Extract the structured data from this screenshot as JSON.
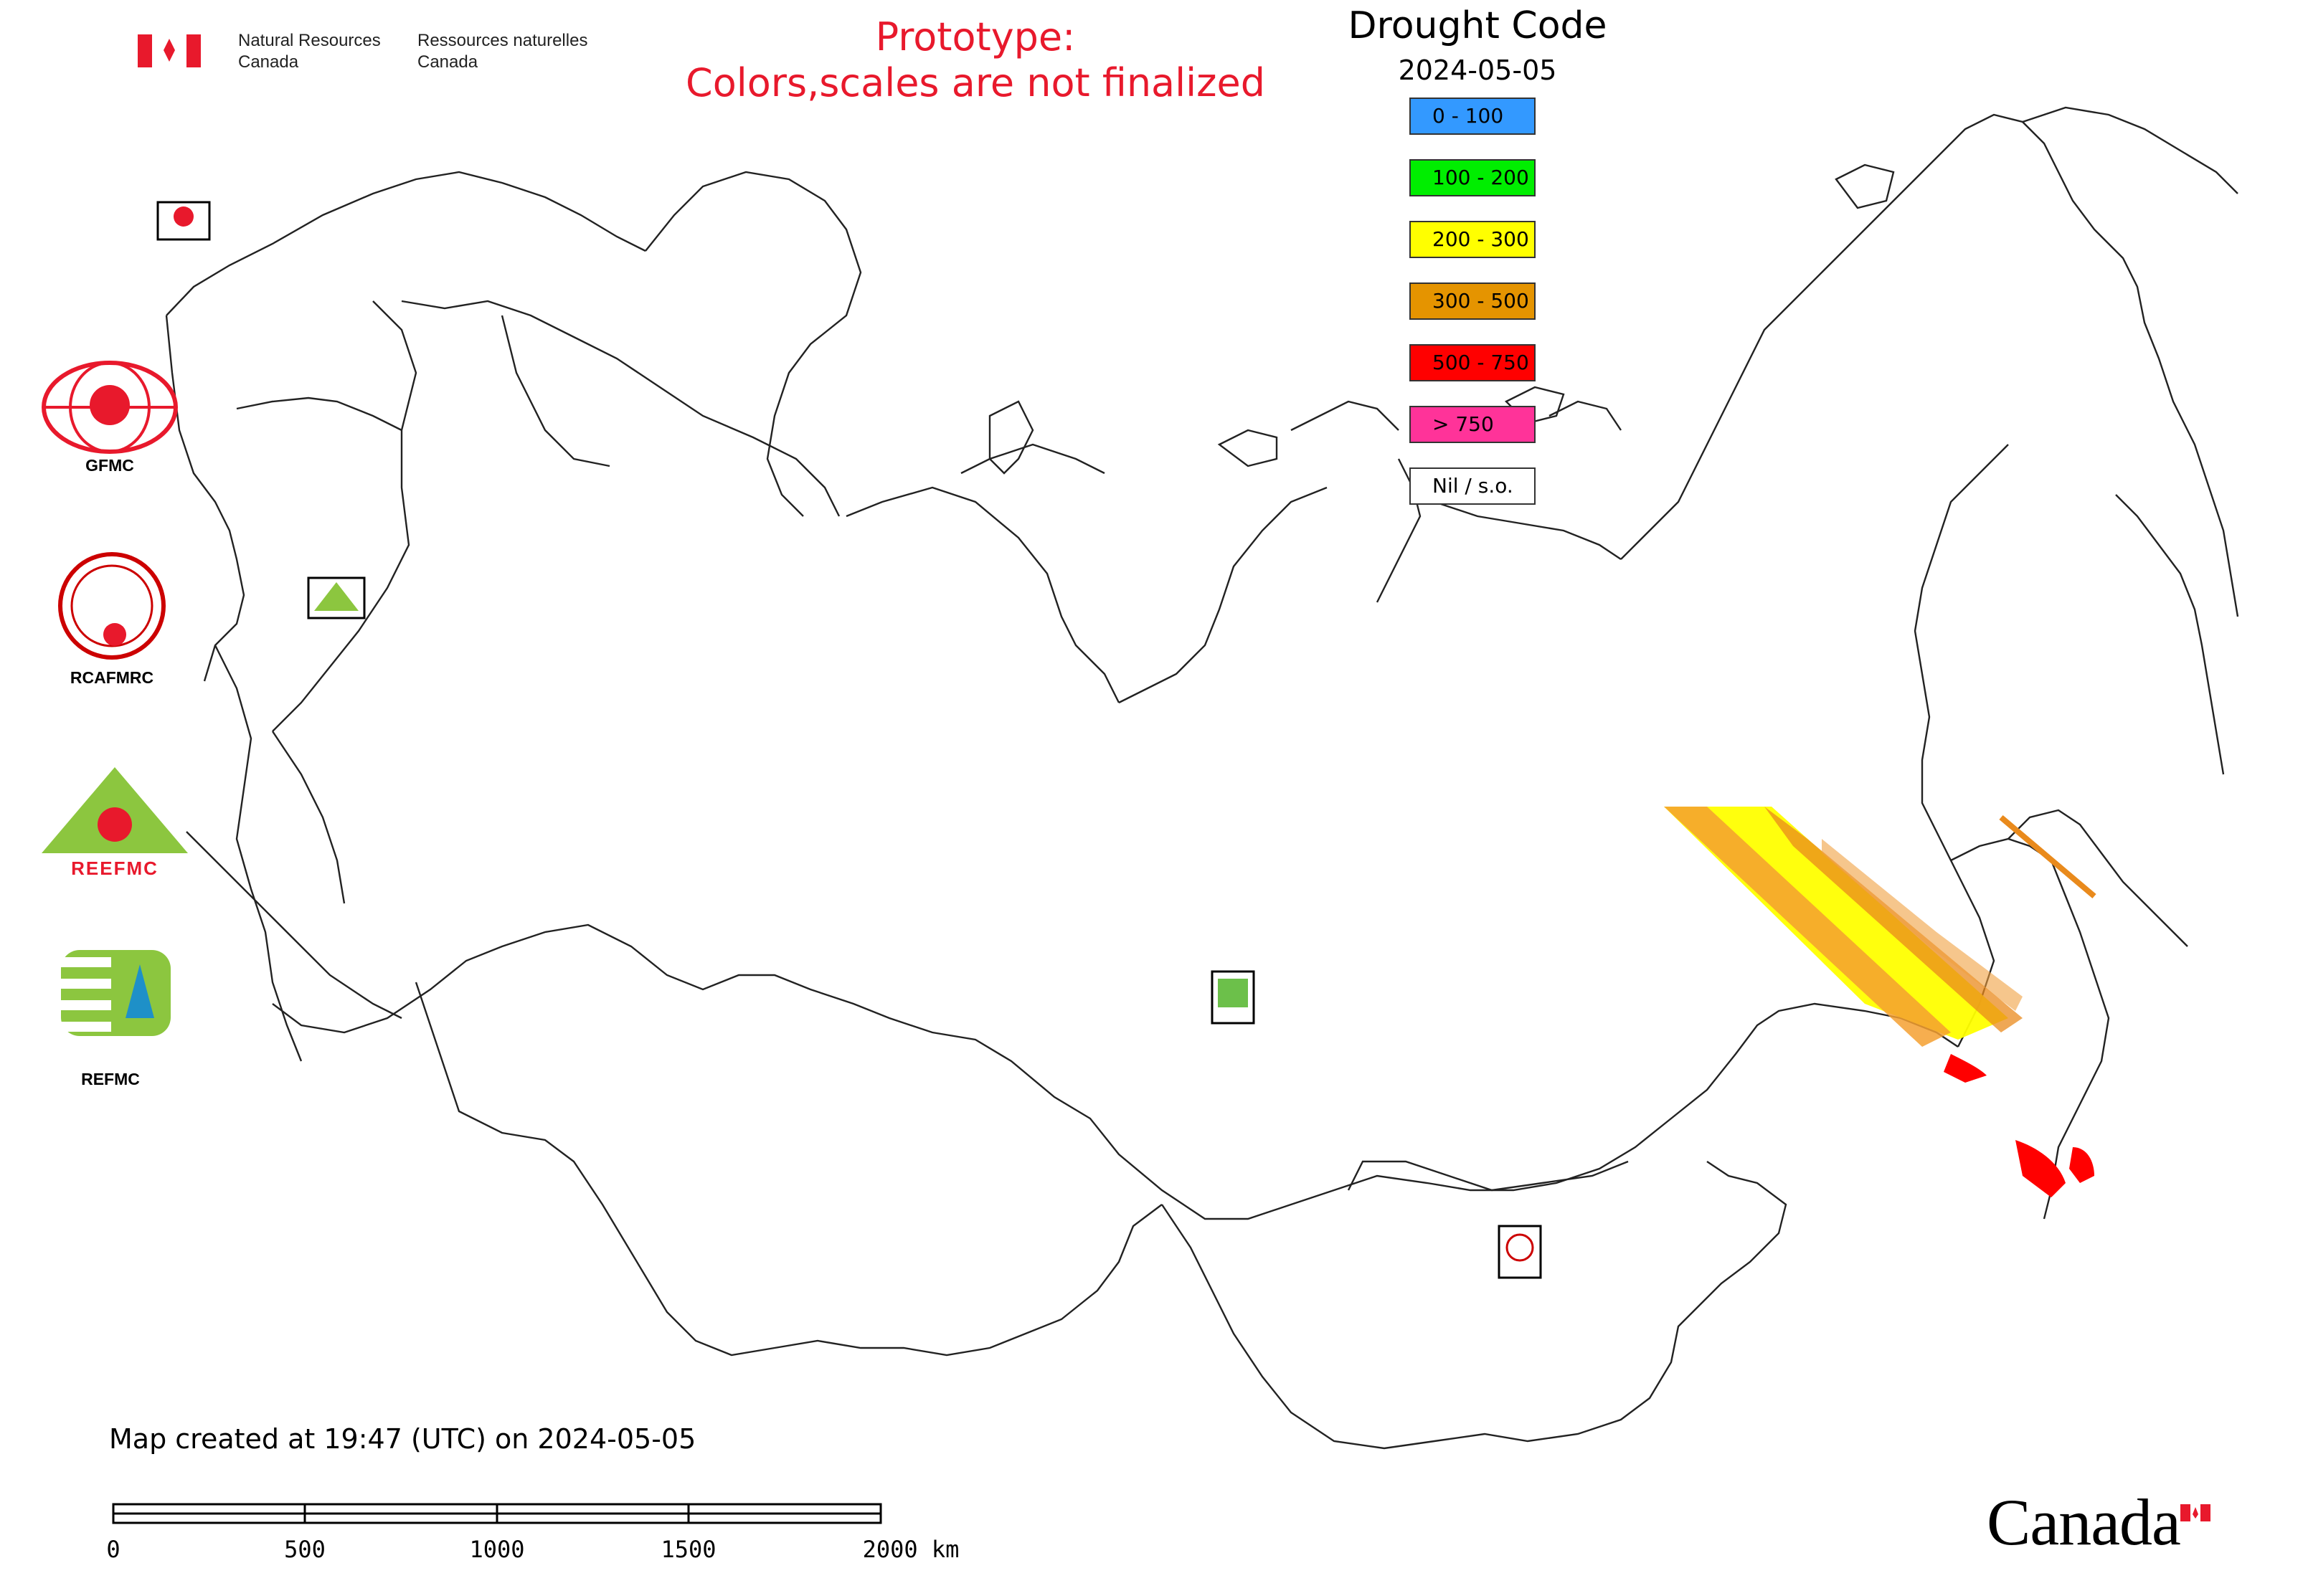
{
  "header": {
    "nrcan_en_line1": "Natural Resources",
    "nrcan_en_line2": "Canada",
    "nrcan_fr_line1": "Ressources naturelles",
    "nrcan_fr_line2": "Canada",
    "prototype_line1": "Prototype:",
    "prototype_line2": "Colors,scales are not finalized"
  },
  "legend": {
    "title": "Drought Code",
    "date": "2024-05-05",
    "items": [
      {
        "label": "0 - 100",
        "color": "#3399ff"
      },
      {
        "label": "100 - 200",
        "color": "#00ee00"
      },
      {
        "label": "200 - 300",
        "color": "#ffff00"
      },
      {
        "label": "300 - 500",
        "color": "#e59400"
      },
      {
        "label": "500 - 750",
        "color": "#ff0000"
      },
      {
        "label": "> 750",
        "color": "#ff3399"
      },
      {
        "label": "Nil / s.o.",
        "color": "#ffffff"
      }
    ]
  },
  "agencies": [
    {
      "label": "GFMC",
      "icon": "gfmc-logo-icon"
    },
    {
      "label": "RCAFMRC",
      "icon": "rcafmrc-logo-icon"
    },
    {
      "label": "REEFMC",
      "icon": "reefmc-logo-icon"
    },
    {
      "label": "REFMC",
      "icon": "refmc-logo-icon"
    }
  ],
  "map": {
    "background": "#ffffff",
    "border_color": "#000000"
  },
  "footer": {
    "timestamp": "Map created at 19:47 (UTC) on 2024-05-05",
    "scale_ticks": [
      "0",
      "500",
      "1000",
      "1500",
      "2000 km"
    ],
    "canada_wordmark": "Canada"
  }
}
